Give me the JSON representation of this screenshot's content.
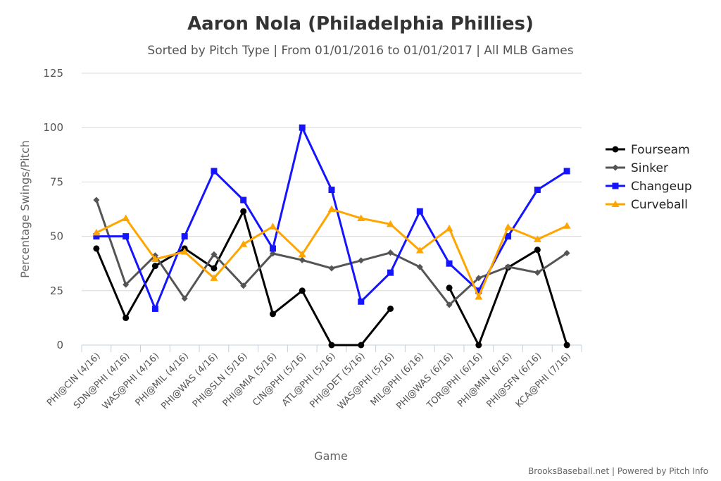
{
  "chart_data": {
    "type": "line",
    "title": "Aaron Nola (Philadelphia Phillies)",
    "subtitle": "Sorted by Pitch Type | From 01/01/2016 to 01/01/2017 | All MLB Games",
    "xlabel": "Game",
    "ylabel": "Percentage Swings/Pitch",
    "ylim": [
      0,
      125
    ],
    "yticks": [
      0,
      25,
      50,
      75,
      100,
      125
    ],
    "grid": true,
    "legend_position": "right",
    "categories": [
      "PHI@CIN (4/16)",
      "SDN@PHI (4/16)",
      "WAS@PHI (4/16)",
      "PHI@MIL (4/16)",
      "PHI@WAS (4/16)",
      "PHI@SLN (5/16)",
      "PHI@MIA (5/16)",
      "CIN@PHI (5/16)",
      "ATL@PHI (5/16)",
      "PHI@DET (5/16)",
      "WAS@PHI (5/16)",
      "MIL@PHI (6/16)",
      "PHI@WAS (6/16)",
      "TOR@PHI (6/16)",
      "PHI@MIN (6/16)",
      "PHI@SFN (6/16)",
      "KCA@PHI (7/16)"
    ],
    "series": [
      {
        "name": "Fourseam",
        "color": "#000000",
        "marker": "circle",
        "values": [
          44.4,
          12.5,
          36.4,
          44.4,
          35.3,
          61.5,
          14.3,
          25,
          0,
          0,
          16.7,
          null,
          26.3,
          0,
          35.7,
          43.8,
          0
        ]
      },
      {
        "name": "Sinker",
        "color": "#555555",
        "marker": "diamond",
        "values": [
          66.7,
          27.8,
          41.2,
          21.4,
          41.7,
          27.3,
          42.1,
          39.1,
          35.3,
          38.9,
          42.5,
          35.9,
          18.5,
          30.8,
          36,
          33.3,
          42.3
        ]
      },
      {
        "name": "Changeup",
        "color": "#1414ff",
        "marker": "square",
        "values": [
          50,
          50,
          16.7,
          50,
          80,
          66.7,
          44.4,
          100,
          71.4,
          20,
          33.3,
          61.5,
          37.5,
          25,
          50,
          71.4,
          80
        ]
      },
      {
        "name": "Curveball",
        "color": "#ffa500",
        "marker": "triangle",
        "values": [
          51.7,
          58.3,
          39.5,
          42.9,
          30.8,
          46.4,
          54.5,
          41.7,
          62.5,
          58.3,
          55.6,
          43.5,
          53.6,
          22.2,
          54.2,
          48.6,
          54.8
        ]
      }
    ]
  },
  "credits": "BrooksBaseball.net | Powered by Pitch Info"
}
